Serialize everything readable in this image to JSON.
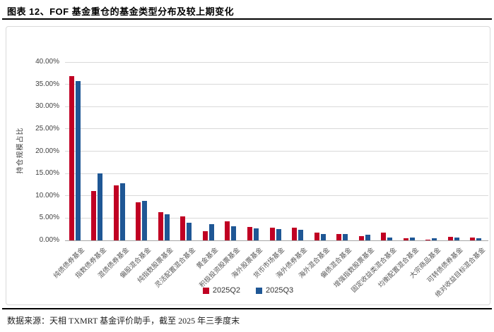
{
  "header": {
    "title": "图表 12、FOF 基金重仓的基金类型分布及较上期变化"
  },
  "footer": {
    "source": "数据来源：天相 TXMRT 基金评价助手，截至 2025 年三季度末"
  },
  "chart_data": {
    "type": "bar",
    "title": "",
    "xlabel": "",
    "ylabel": "持仓规模占比",
    "ylim": [
      0,
      40
    ],
    "ytick_step": 5,
    "yticks": [
      "0.00%",
      "5.00%",
      "10.00%",
      "15.00%",
      "20.00%",
      "25.00%",
      "30.00%",
      "35.00%",
      "40.00%"
    ],
    "grid": true,
    "legend_position": "bottom",
    "categories": [
      "纯债债券基金",
      "指数债券基金",
      "混债债券基金",
      "偏股混合基金",
      "纯指数股票基金",
      "灵活配置混合基金",
      "黄金基金",
      "积极投资股票基金",
      "海外股票基金",
      "货币市场基金",
      "海外债券基金",
      "海外混合基金",
      "偏债混合基金",
      "增强指数股票基金",
      "固定收益类混合基金",
      "均衡配置混合基金",
      "大宗商品基金",
      "可转债债券基金",
      "绝对收益目标混合基金"
    ],
    "series": [
      {
        "name": "2025Q2",
        "color": "#C00023",
        "values": [
          36.8,
          11.1,
          12.3,
          8.6,
          6.3,
          5.4,
          2.1,
          4.3,
          3.0,
          2.8,
          2.9,
          1.7,
          1.4,
          1.0,
          1.8,
          0.5,
          0.2,
          0.8,
          0.6
        ]
      },
      {
        "name": "2025Q3",
        "color": "#1F5795",
        "values": [
          35.7,
          15.0,
          12.8,
          8.9,
          5.9,
          3.9,
          3.7,
          3.1,
          2.7,
          2.5,
          2.3,
          1.5,
          1.5,
          1.2,
          0.6,
          0.7,
          0.5,
          0.6,
          0.4
        ]
      }
    ],
    "colors": {
      "gridline": "#d9d9d9",
      "axis_line": "#a6a6a6",
      "tick_text": "#404040",
      "category_text": "#595959"
    }
  }
}
